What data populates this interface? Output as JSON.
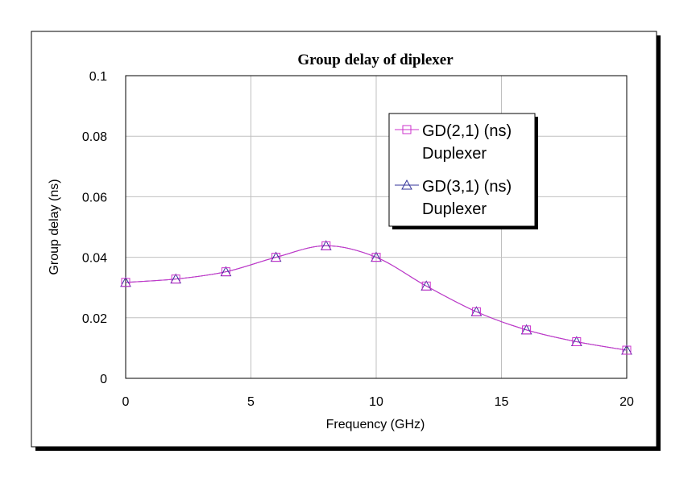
{
  "chart_data": {
    "type": "line",
    "title": "Group delay of diplexer",
    "xlabel": "Frequency (GHz)",
    "ylabel": "Group delay (ns)",
    "xlim": [
      0,
      20
    ],
    "ylim": [
      0,
      0.1
    ],
    "x_ticks": [
      "0",
      "5",
      "10",
      "15",
      "20"
    ],
    "y_ticks": [
      "0",
      "0.02",
      "0.04",
      "0.06",
      "0.08",
      "0.1"
    ],
    "grid": true,
    "legend_position": "top-right",
    "colors": {
      "series1": "#cc33cc",
      "series2": "#333399",
      "grid": "#c0c0c0",
      "frame": "#000000"
    },
    "series": [
      {
        "label_line1": "GD(2,1) (ns)",
        "label_line2": "Duplexer",
        "marker": "square",
        "color": "#cc33cc",
        "x": [
          0,
          2,
          4,
          6,
          8,
          10,
          12,
          14,
          16,
          18,
          20
        ],
        "y": [
          0.0317,
          0.0328,
          0.0352,
          0.04,
          0.0438,
          0.04,
          0.0305,
          0.022,
          0.016,
          0.0121,
          0.0093
        ]
      },
      {
        "label_line1": "GD(3,1) (ns)",
        "label_line2": "Duplexer",
        "marker": "triangle",
        "color": "#333399",
        "x": [
          0,
          2,
          4,
          6,
          8,
          10,
          12,
          14,
          16,
          18,
          20
        ],
        "y": [
          0.0317,
          0.0328,
          0.0352,
          0.04,
          0.0438,
          0.04,
          0.0305,
          0.022,
          0.016,
          0.0121,
          0.0093
        ]
      }
    ]
  }
}
